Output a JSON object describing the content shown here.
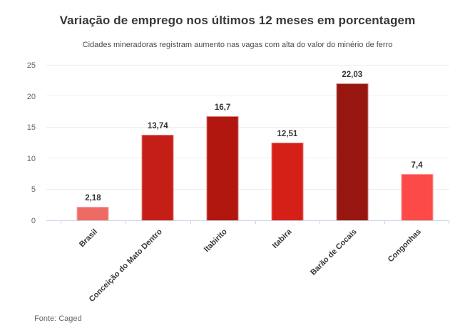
{
  "header": {
    "title": "Variação de emprego nos últimos 12 meses em porcentagem",
    "subtitle": "Cidades mineradoras registram aumento nas vagas com alta do valor do minério de ferro"
  },
  "footer": {
    "source": "Fonte: Caged"
  },
  "chart_data": {
    "type": "bar",
    "title": "Variação de emprego nos últimos 12 meses em porcentagem",
    "subtitle": "Cidades mineradoras registram aumento nas vagas com alta do valor do minério de ferro",
    "categories": [
      "Brasil",
      "Conceição do Mato Dentro",
      "Itabirito",
      "Itabira",
      "Barão de Cocais",
      "Congonhas"
    ],
    "values": [
      2.18,
      13.74,
      16.7,
      12.51,
      22.03,
      7.4
    ],
    "value_labels": [
      "2,18",
      "13,74",
      "16,7",
      "12,51",
      "22,03",
      "7,4"
    ],
    "bar_colors": [
      "#f06a65",
      "#c51e16",
      "#b1170f",
      "#d62017",
      "#971710",
      "#fc4a48"
    ],
    "xlabel": "",
    "ylabel": "",
    "ylim": [
      0,
      25
    ],
    "yticks": [
      0,
      5,
      10,
      15,
      20,
      25
    ],
    "grid": true,
    "legend": false,
    "decimal_separator": ",",
    "source": "Fonte: Caged"
  },
  "colors": {
    "background": "#ffffff",
    "title_text": "#383838",
    "subtitle_text": "#4a4a4a",
    "axis_line": "#ccd3e6",
    "gridline": "#ededed",
    "y_tick_label": "#666666",
    "value_label": "#333333",
    "category_label": "#383838",
    "source_text": "#666666"
  }
}
